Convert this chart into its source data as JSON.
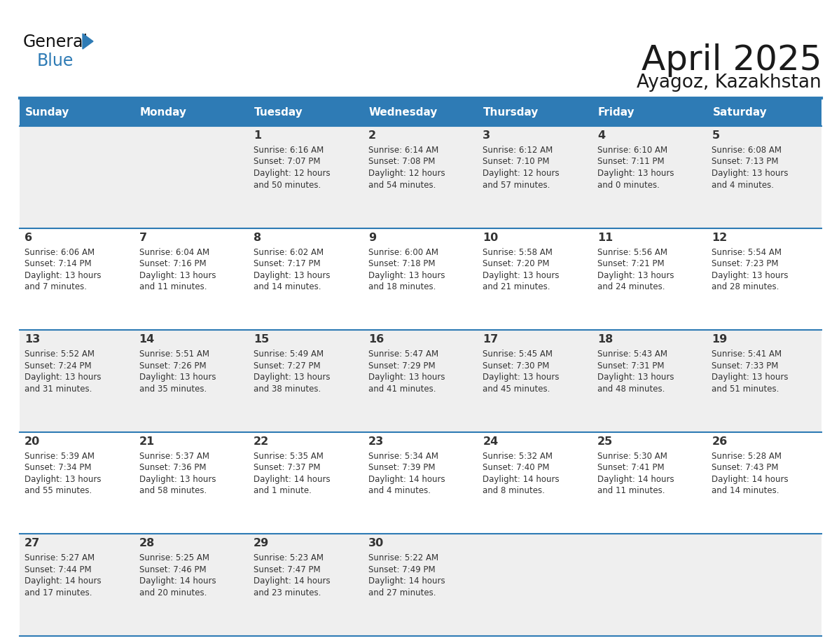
{
  "title": "April 2025",
  "subtitle": "Ayagoz, Kazakhstan",
  "days_of_week": [
    "Sunday",
    "Monday",
    "Tuesday",
    "Wednesday",
    "Thursday",
    "Friday",
    "Saturday"
  ],
  "header_bg": "#2E7BB5",
  "header_text_color": "#FFFFFF",
  "row_colors": [
    "#EFEFEF",
    "#FFFFFF"
  ],
  "border_color": "#2E7BB5",
  "text_color": "#333333",
  "title_color": "#1a1a1a",
  "calendar_data": [
    [
      {
        "day": "",
        "lines": []
      },
      {
        "day": "",
        "lines": []
      },
      {
        "day": "1",
        "lines": [
          "Sunrise: 6:16 AM",
          "Sunset: 7:07 PM",
          "Daylight: 12 hours",
          "and 50 minutes."
        ]
      },
      {
        "day": "2",
        "lines": [
          "Sunrise: 6:14 AM",
          "Sunset: 7:08 PM",
          "Daylight: 12 hours",
          "and 54 minutes."
        ]
      },
      {
        "day": "3",
        "lines": [
          "Sunrise: 6:12 AM",
          "Sunset: 7:10 PM",
          "Daylight: 12 hours",
          "and 57 minutes."
        ]
      },
      {
        "day": "4",
        "lines": [
          "Sunrise: 6:10 AM",
          "Sunset: 7:11 PM",
          "Daylight: 13 hours",
          "and 0 minutes."
        ]
      },
      {
        "day": "5",
        "lines": [
          "Sunrise: 6:08 AM",
          "Sunset: 7:13 PM",
          "Daylight: 13 hours",
          "and 4 minutes."
        ]
      }
    ],
    [
      {
        "day": "6",
        "lines": [
          "Sunrise: 6:06 AM",
          "Sunset: 7:14 PM",
          "Daylight: 13 hours",
          "and 7 minutes."
        ]
      },
      {
        "day": "7",
        "lines": [
          "Sunrise: 6:04 AM",
          "Sunset: 7:16 PM",
          "Daylight: 13 hours",
          "and 11 minutes."
        ]
      },
      {
        "day": "8",
        "lines": [
          "Sunrise: 6:02 AM",
          "Sunset: 7:17 PM",
          "Daylight: 13 hours",
          "and 14 minutes."
        ]
      },
      {
        "day": "9",
        "lines": [
          "Sunrise: 6:00 AM",
          "Sunset: 7:18 PM",
          "Daylight: 13 hours",
          "and 18 minutes."
        ]
      },
      {
        "day": "10",
        "lines": [
          "Sunrise: 5:58 AM",
          "Sunset: 7:20 PM",
          "Daylight: 13 hours",
          "and 21 minutes."
        ]
      },
      {
        "day": "11",
        "lines": [
          "Sunrise: 5:56 AM",
          "Sunset: 7:21 PM",
          "Daylight: 13 hours",
          "and 24 minutes."
        ]
      },
      {
        "day": "12",
        "lines": [
          "Sunrise: 5:54 AM",
          "Sunset: 7:23 PM",
          "Daylight: 13 hours",
          "and 28 minutes."
        ]
      }
    ],
    [
      {
        "day": "13",
        "lines": [
          "Sunrise: 5:52 AM",
          "Sunset: 7:24 PM",
          "Daylight: 13 hours",
          "and 31 minutes."
        ]
      },
      {
        "day": "14",
        "lines": [
          "Sunrise: 5:51 AM",
          "Sunset: 7:26 PM",
          "Daylight: 13 hours",
          "and 35 minutes."
        ]
      },
      {
        "day": "15",
        "lines": [
          "Sunrise: 5:49 AM",
          "Sunset: 7:27 PM",
          "Daylight: 13 hours",
          "and 38 minutes."
        ]
      },
      {
        "day": "16",
        "lines": [
          "Sunrise: 5:47 AM",
          "Sunset: 7:29 PM",
          "Daylight: 13 hours",
          "and 41 minutes."
        ]
      },
      {
        "day": "17",
        "lines": [
          "Sunrise: 5:45 AM",
          "Sunset: 7:30 PM",
          "Daylight: 13 hours",
          "and 45 minutes."
        ]
      },
      {
        "day": "18",
        "lines": [
          "Sunrise: 5:43 AM",
          "Sunset: 7:31 PM",
          "Daylight: 13 hours",
          "and 48 minutes."
        ]
      },
      {
        "day": "19",
        "lines": [
          "Sunrise: 5:41 AM",
          "Sunset: 7:33 PM",
          "Daylight: 13 hours",
          "and 51 minutes."
        ]
      }
    ],
    [
      {
        "day": "20",
        "lines": [
          "Sunrise: 5:39 AM",
          "Sunset: 7:34 PM",
          "Daylight: 13 hours",
          "and 55 minutes."
        ]
      },
      {
        "day": "21",
        "lines": [
          "Sunrise: 5:37 AM",
          "Sunset: 7:36 PM",
          "Daylight: 13 hours",
          "and 58 minutes."
        ]
      },
      {
        "day": "22",
        "lines": [
          "Sunrise: 5:35 AM",
          "Sunset: 7:37 PM",
          "Daylight: 14 hours",
          "and 1 minute."
        ]
      },
      {
        "day": "23",
        "lines": [
          "Sunrise: 5:34 AM",
          "Sunset: 7:39 PM",
          "Daylight: 14 hours",
          "and 4 minutes."
        ]
      },
      {
        "day": "24",
        "lines": [
          "Sunrise: 5:32 AM",
          "Sunset: 7:40 PM",
          "Daylight: 14 hours",
          "and 8 minutes."
        ]
      },
      {
        "day": "25",
        "lines": [
          "Sunrise: 5:30 AM",
          "Sunset: 7:41 PM",
          "Daylight: 14 hours",
          "and 11 minutes."
        ]
      },
      {
        "day": "26",
        "lines": [
          "Sunrise: 5:28 AM",
          "Sunset: 7:43 PM",
          "Daylight: 14 hours",
          "and 14 minutes."
        ]
      }
    ],
    [
      {
        "day": "27",
        "lines": [
          "Sunrise: 5:27 AM",
          "Sunset: 7:44 PM",
          "Daylight: 14 hours",
          "and 17 minutes."
        ]
      },
      {
        "day": "28",
        "lines": [
          "Sunrise: 5:25 AM",
          "Sunset: 7:46 PM",
          "Daylight: 14 hours",
          "and 20 minutes."
        ]
      },
      {
        "day": "29",
        "lines": [
          "Sunrise: 5:23 AM",
          "Sunset: 7:47 PM",
          "Daylight: 14 hours",
          "and 23 minutes."
        ]
      },
      {
        "day": "30",
        "lines": [
          "Sunrise: 5:22 AM",
          "Sunset: 7:49 PM",
          "Daylight: 14 hours",
          "and 27 minutes."
        ]
      },
      {
        "day": "",
        "lines": []
      },
      {
        "day": "",
        "lines": []
      },
      {
        "day": "",
        "lines": []
      }
    ]
  ]
}
